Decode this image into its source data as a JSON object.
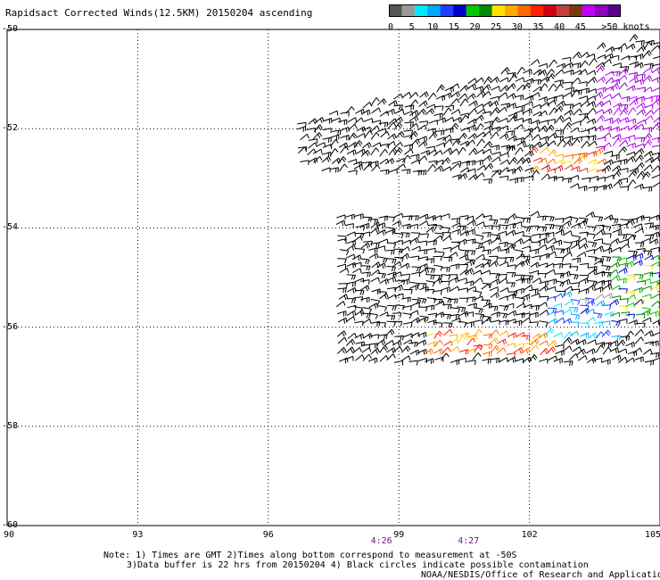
{
  "title": "Rapidsact Corrected Winds(12.5KM) 20150204 ascending",
  "color_scale": {
    "colors": [
      "#555555",
      "#9a9a9a",
      "#00e8ff",
      "#00a8ff",
      "#2040ff",
      "#0000c8",
      "#00c800",
      "#008800",
      "#ffe000",
      "#ffaa00",
      "#ff6a00",
      "#ff2000",
      "#d00010",
      "#c04040",
      "#7a3810",
      "#c000ff",
      "#9000c0",
      "#5a0090"
    ],
    "labels": [
      "0",
      "5",
      "10",
      "15",
      "20",
      "25",
      "30",
      "35",
      "40",
      "45",
      "50"
    ],
    "units_label": "knots",
    "last_label_prefix": ">"
  },
  "map": {
    "lon_range": [
      90,
      105
    ],
    "lat_range": [
      -50,
      -60
    ],
    "lon_ticks": [
      "90",
      "93",
      "96",
      "99",
      "102",
      "105"
    ],
    "lat_ticks": [
      "-50",
      "-52",
      "-54",
      "-56",
      "-58",
      "-60"
    ],
    "grid": "dotted",
    "time_labels": [
      {
        "lon": 98.6,
        "text": "4:26"
      },
      {
        "lon": 100.6,
        "text": "4:27"
      }
    ],
    "swaths": [
      {
        "lon": [
          96.7,
          105.0
        ],
        "lat": [
          -50.1,
          -53.3
        ]
      },
      {
        "lon": [
          97.6,
          105.0
        ],
        "lat": [
          -53.8,
          -56.0
        ]
      },
      {
        "lon": [
          97.6,
          105.0
        ],
        "lat": [
          -56.2,
          -56.8
        ]
      }
    ],
    "high_wind_regions": [
      {
        "lon": [
          103.5,
          105.0
        ],
        "lat": [
          -50.8,
          -52.5
        ],
        "speed": "45-50"
      },
      {
        "lon": [
          102.0,
          103.6
        ],
        "lat": [
          -52.5,
          -53.0
        ],
        "speed": "25-40"
      },
      {
        "lon": [
          103.8,
          105.0
        ],
        "lat": [
          -54.6,
          -55.8
        ],
        "speed": "15-25"
      },
      {
        "lon": [
          102.3,
          104.0
        ],
        "lat": [
          -55.4,
          -56.2
        ],
        "speed": "5-15"
      },
      {
        "lon": [
          99.6,
          102.4
        ],
        "lat": [
          -56.2,
          -56.6
        ],
        "speed": "25-35"
      }
    ]
  },
  "notes": {
    "line1": "Note: 1) Times are GMT 2)Times along bottom correspond to measurement at -50S",
    "line2": "3)Data buffer is 22 hrs from 20150204 4) Black circles indicate possible contamination",
    "credit": "NOAA/NESDIS/Office of Research and Applications"
  }
}
